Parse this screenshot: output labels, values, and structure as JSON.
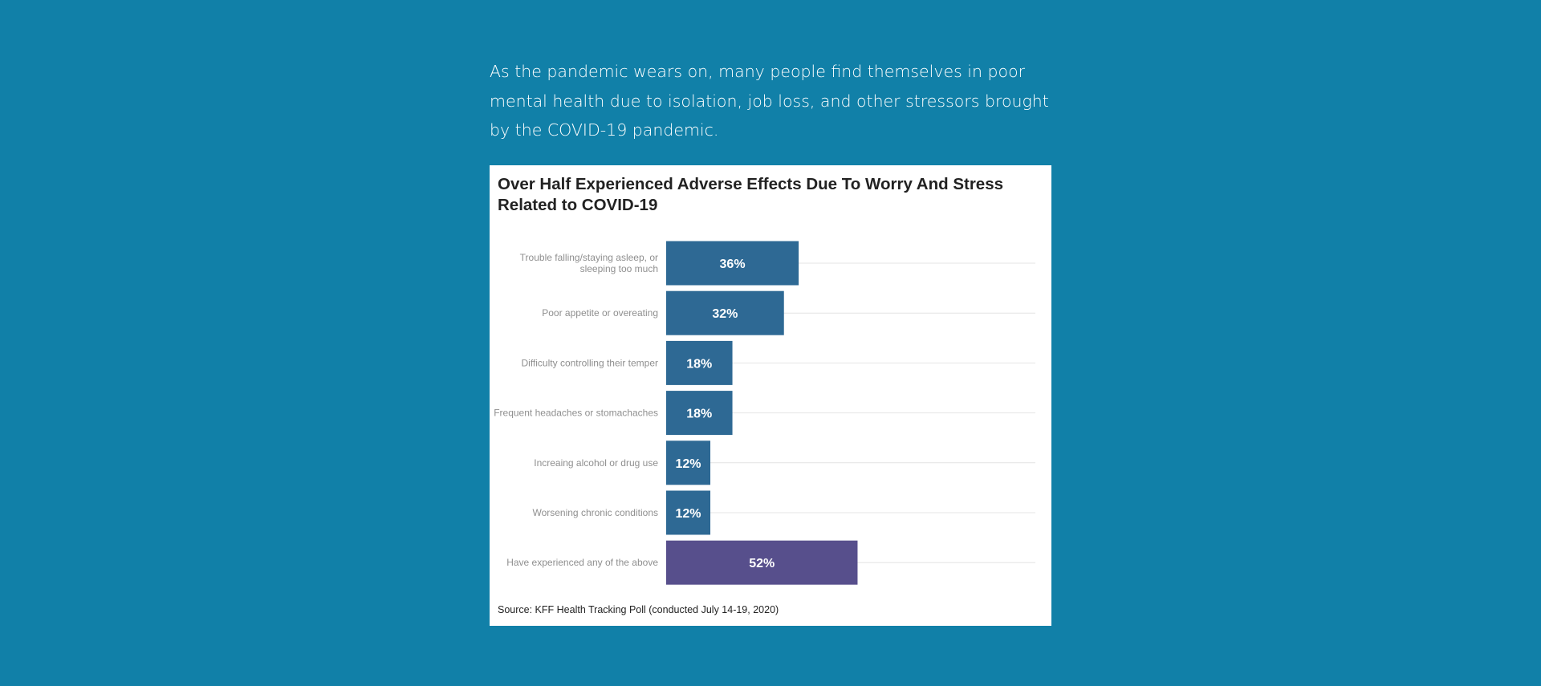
{
  "intro_text": "As the pandemic wears on, many people find themselves in poor mental health due to isolation, job loss, and other stressors brought by the COVID-19 pandemic.",
  "colors": {
    "page_background": "#1180a8",
    "bar_primary": "#2e6994",
    "bar_highlight": "#574f8c",
    "gridline": "#e4e4e4",
    "label_text": "#8f8f8f"
  },
  "chart_data": {
    "type": "bar",
    "orientation": "horizontal",
    "title": "Over Half Experienced Adverse Effects Due To Worry And Stress Related to COVID-19",
    "source": "Source: KFF Health Tracking Poll (conducted July 14-19, 2020)",
    "xlim": [
      0,
      100
    ],
    "value_suffix": "%",
    "grid": true,
    "categories": [
      [
        "Trouble falling/staying asleep, or",
        "sleeping too much"
      ],
      [
        "Poor appetite or overeating"
      ],
      [
        "Difficulty controlling their temper"
      ],
      [
        "Frequent headaches or stomachaches"
      ],
      [
        "Increaing alcohol or drug use"
      ],
      [
        "Worsening chronic conditions"
      ],
      [
        "Have experienced any of the above"
      ]
    ],
    "values": [
      36,
      32,
      18,
      18,
      12,
      12,
      52
    ],
    "highlight_index": 6
  }
}
